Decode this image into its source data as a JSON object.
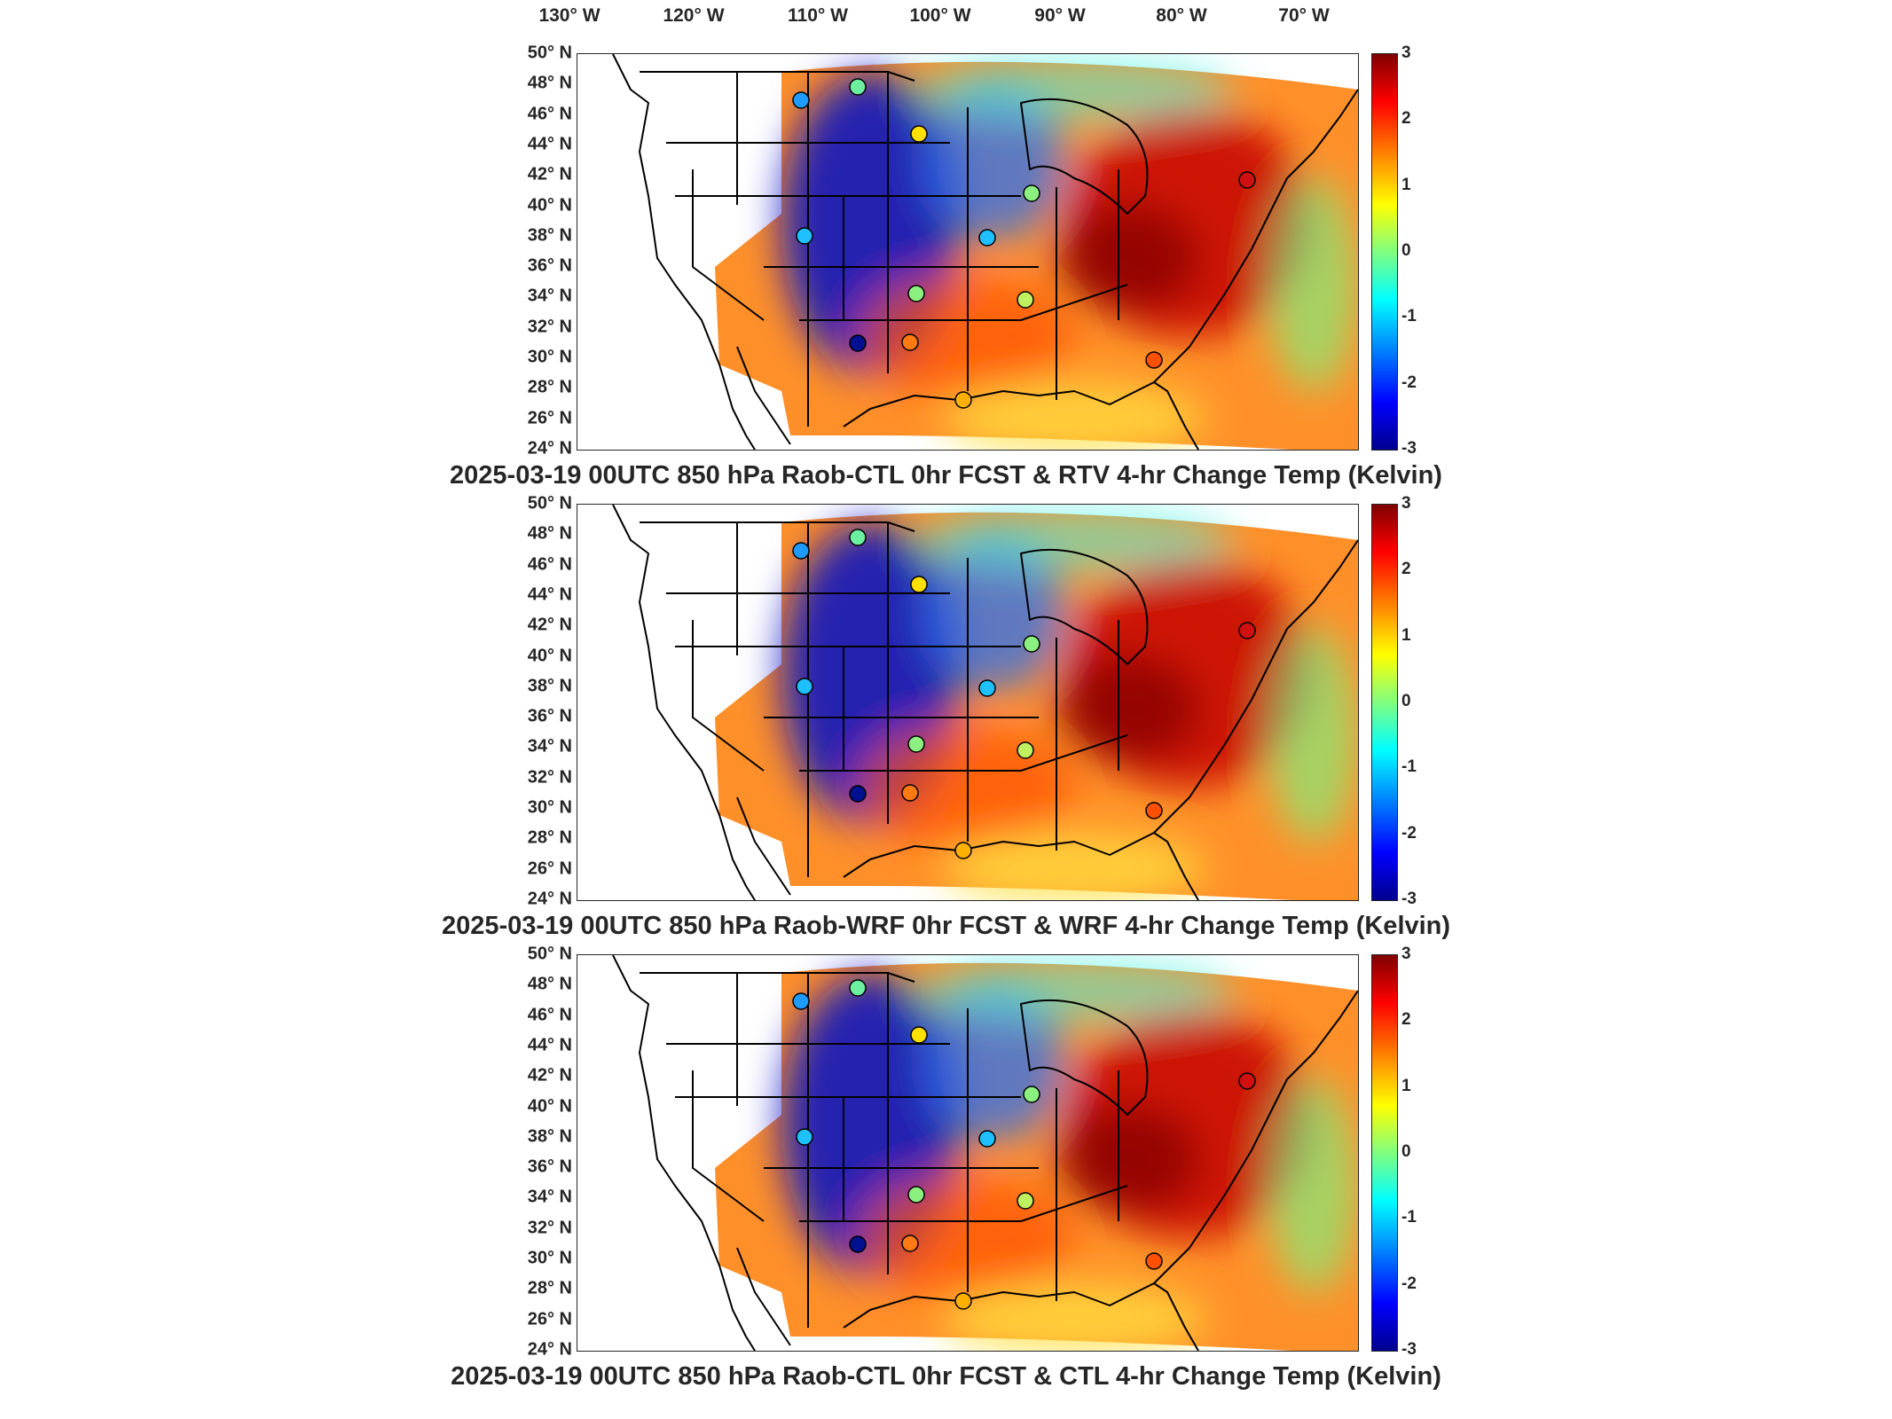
{
  "lon_ticks": [
    "130° W",
    "120° W",
    "110° W",
    "100° W",
    "90° W",
    "80° W",
    "70° W"
  ],
  "lat_ticks": [
    "50° N",
    "48° N",
    "46° N",
    "44° N",
    "42° N",
    "40° N",
    "38° N",
    "36° N",
    "34° N",
    "32° N",
    "30° N",
    "28° N",
    "26° N",
    "24° N"
  ],
  "colorbar": {
    "range": [
      -3,
      3
    ],
    "ticks": [
      "3",
      "2",
      "1",
      "0",
      "-1",
      "-2",
      "-3"
    ],
    "colormap": "jet",
    "colors": [
      "#00008f",
      "#0000ff",
      "#0080ff",
      "#00ffff",
      "#80ff80",
      "#ffff00",
      "#ff8000",
      "#ff0000",
      "#800000"
    ]
  },
  "panels": [
    {
      "title": "2025-03-19 00UTC 850 hPa Raob-CTL 0hr FCST & RTV 4-hr Change Temp (Kelvin)"
    },
    {
      "title": "2025-03-19 00UTC 850 hPa Raob-WRF 0hr FCST & WRF 4-hr Change Temp (Kelvin)"
    },
    {
      "title": "2025-03-19 00UTC 850 hPa Raob-CTL 0hr FCST & CTL 4-hr Change Temp (Kelvin)"
    }
  ]
}
